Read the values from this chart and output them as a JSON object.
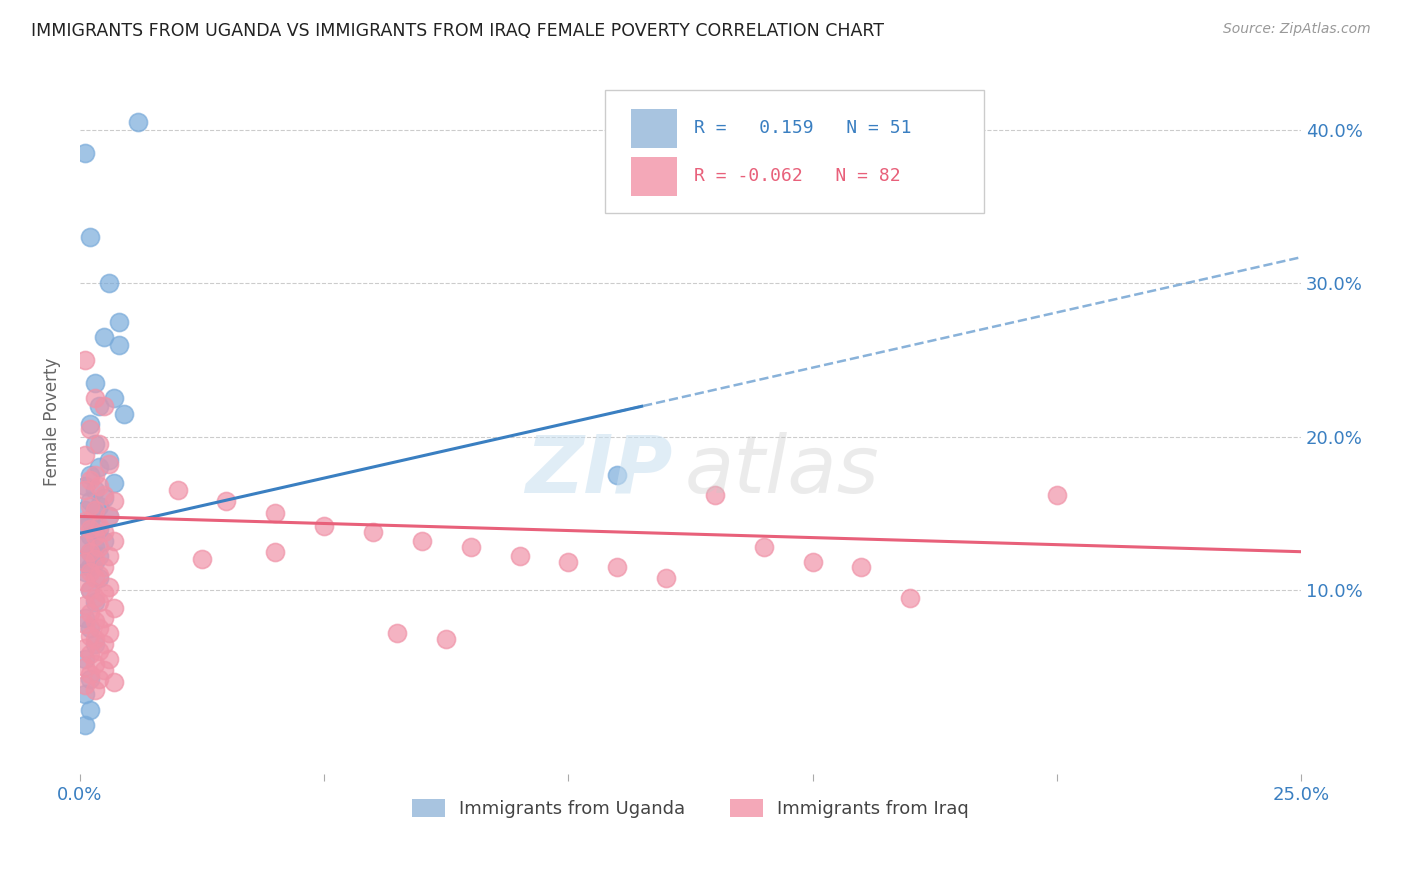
{
  "title": "IMMIGRANTS FROM UGANDA VS IMMIGRANTS FROM IRAQ FEMALE POVERTY CORRELATION CHART",
  "source": "Source: ZipAtlas.com",
  "ylabel": "Female Poverty",
  "xlim": [
    0.0,
    0.25
  ],
  "ylim": [
    -0.02,
    0.44
  ],
  "xtick_vals": [
    0.0,
    0.05,
    0.1,
    0.15,
    0.2,
    0.25
  ],
  "xtick_labels": [
    "0.0%",
    "",
    "",
    "",
    "",
    "25.0%"
  ],
  "ytick_vals": [
    0.1,
    0.2,
    0.3,
    0.4
  ],
  "ytick_labels": [
    "10.0%",
    "20.0%",
    "30.0%",
    "40.0%"
  ],
  "uganda_color": "#7aabda",
  "iraq_color": "#f093a8",
  "uganda_trend_color": "#3a7fc1",
  "iraq_trend_color": "#e8607a",
  "uganda_label": "Immigrants from Uganda",
  "iraq_label": "Immigrants from Iraq",
  "r_uganda": 0.159,
  "n_uganda": 51,
  "r_iraq": -0.062,
  "n_iraq": 82,
  "uganda_legend_color": "#a8c4e0",
  "iraq_legend_color": "#f4a8b8",
  "legend_r_uganda": "R =   0.159   N = 51",
  "legend_r_iraq": "R = -0.062   N = 82",
  "legend_text_color_blue": "#3a7fc1",
  "legend_text_color_pink": "#e8607a",
  "grid_color": "#cccccc",
  "axis_label_color": "#3a7fc1",
  "ylabel_color": "#666666",
  "title_color": "#222222",
  "source_color": "#999999",
  "watermark_zip_color": "#c8dff0",
  "watermark_atlas_color": "#c8c8c8",
  "uganda_trend_intercept": 0.137,
  "uganda_trend_slope": 0.72,
  "iraq_trend_intercept": 0.148,
  "iraq_trend_slope": -0.092,
  "uganda_points": [
    [
      0.001,
      0.385
    ],
    [
      0.012,
      0.405
    ],
    [
      0.002,
      0.33
    ],
    [
      0.006,
      0.3
    ],
    [
      0.008,
      0.275
    ],
    [
      0.003,
      0.235
    ],
    [
      0.007,
      0.225
    ],
    [
      0.004,
      0.22
    ],
    [
      0.009,
      0.215
    ],
    [
      0.002,
      0.208
    ],
    [
      0.005,
      0.265
    ],
    [
      0.008,
      0.26
    ],
    [
      0.003,
      0.195
    ],
    [
      0.006,
      0.185
    ],
    [
      0.004,
      0.18
    ],
    [
      0.002,
      0.175
    ],
    [
      0.007,
      0.17
    ],
    [
      0.001,
      0.168
    ],
    [
      0.003,
      0.165
    ],
    [
      0.005,
      0.16
    ],
    [
      0.002,
      0.158
    ],
    [
      0.004,
      0.155
    ],
    [
      0.001,
      0.152
    ],
    [
      0.003,
      0.15
    ],
    [
      0.006,
      0.148
    ],
    [
      0.002,
      0.145
    ],
    [
      0.001,
      0.143
    ],
    [
      0.004,
      0.14
    ],
    [
      0.003,
      0.138
    ],
    [
      0.002,
      0.135
    ],
    [
      0.005,
      0.132
    ],
    [
      0.001,
      0.13
    ],
    [
      0.003,
      0.128
    ],
    [
      0.002,
      0.125
    ],
    [
      0.004,
      0.122
    ],
    [
      0.001,
      0.12
    ],
    [
      0.003,
      0.118
    ],
    [
      0.002,
      0.115
    ],
    [
      0.001,
      0.112
    ],
    [
      0.004,
      0.108
    ],
    [
      0.002,
      0.1
    ],
    [
      0.003,
      0.092
    ],
    [
      0.001,
      0.082
    ],
    [
      0.002,
      0.075
    ],
    [
      0.003,
      0.065
    ],
    [
      0.001,
      0.055
    ],
    [
      0.002,
      0.042
    ],
    [
      0.001,
      0.032
    ],
    [
      0.002,
      0.022
    ],
    [
      0.001,
      0.012
    ],
    [
      0.11,
      0.175
    ]
  ],
  "iraq_points": [
    [
      0.001,
      0.25
    ],
    [
      0.003,
      0.225
    ],
    [
      0.005,
      0.22
    ],
    [
      0.002,
      0.205
    ],
    [
      0.004,
      0.195
    ],
    [
      0.001,
      0.188
    ],
    [
      0.006,
      0.182
    ],
    [
      0.003,
      0.175
    ],
    [
      0.002,
      0.172
    ],
    [
      0.004,
      0.168
    ],
    [
      0.001,
      0.165
    ],
    [
      0.005,
      0.162
    ],
    [
      0.007,
      0.158
    ],
    [
      0.002,
      0.155
    ],
    [
      0.003,
      0.152
    ],
    [
      0.006,
      0.148
    ],
    [
      0.001,
      0.145
    ],
    [
      0.004,
      0.142
    ],
    [
      0.002,
      0.14
    ],
    [
      0.005,
      0.138
    ],
    [
      0.003,
      0.135
    ],
    [
      0.007,
      0.132
    ],
    [
      0.001,
      0.13
    ],
    [
      0.004,
      0.128
    ],
    [
      0.002,
      0.125
    ],
    [
      0.006,
      0.122
    ],
    [
      0.003,
      0.12
    ],
    [
      0.001,
      0.118
    ],
    [
      0.005,
      0.115
    ],
    [
      0.002,
      0.112
    ],
    [
      0.004,
      0.11
    ],
    [
      0.003,
      0.108
    ],
    [
      0.001,
      0.105
    ],
    [
      0.006,
      0.102
    ],
    [
      0.002,
      0.1
    ],
    [
      0.005,
      0.098
    ],
    [
      0.003,
      0.095
    ],
    [
      0.004,
      0.092
    ],
    [
      0.001,
      0.09
    ],
    [
      0.007,
      0.088
    ],
    [
      0.002,
      0.085
    ],
    [
      0.005,
      0.082
    ],
    [
      0.003,
      0.08
    ],
    [
      0.001,
      0.078
    ],
    [
      0.004,
      0.075
    ],
    [
      0.006,
      0.072
    ],
    [
      0.002,
      0.07
    ],
    [
      0.003,
      0.068
    ],
    [
      0.005,
      0.065
    ],
    [
      0.001,
      0.062
    ],
    [
      0.004,
      0.06
    ],
    [
      0.002,
      0.058
    ],
    [
      0.006,
      0.055
    ],
    [
      0.003,
      0.052
    ],
    [
      0.001,
      0.05
    ],
    [
      0.005,
      0.048
    ],
    [
      0.002,
      0.045
    ],
    [
      0.004,
      0.042
    ],
    [
      0.007,
      0.04
    ],
    [
      0.001,
      0.038
    ],
    [
      0.003,
      0.035
    ],
    [
      0.02,
      0.165
    ],
    [
      0.03,
      0.158
    ],
    [
      0.04,
      0.15
    ],
    [
      0.05,
      0.142
    ],
    [
      0.06,
      0.138
    ],
    [
      0.07,
      0.132
    ],
    [
      0.04,
      0.125
    ],
    [
      0.025,
      0.12
    ],
    [
      0.08,
      0.128
    ],
    [
      0.09,
      0.122
    ],
    [
      0.1,
      0.118
    ],
    [
      0.11,
      0.115
    ],
    [
      0.13,
      0.162
    ],
    [
      0.14,
      0.128
    ],
    [
      0.15,
      0.118
    ],
    [
      0.16,
      0.115
    ],
    [
      0.2,
      0.162
    ],
    [
      0.12,
      0.108
    ],
    [
      0.17,
      0.095
    ],
    [
      0.065,
      0.072
    ],
    [
      0.075,
      0.068
    ]
  ]
}
